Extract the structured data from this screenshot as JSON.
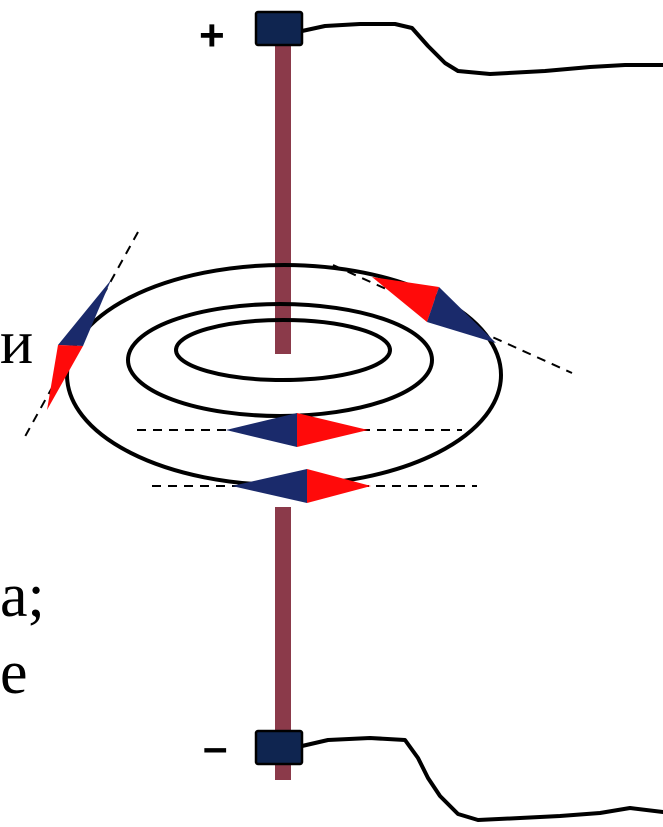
{
  "text_fragments": {
    "fragment_1": "и",
    "fragment_2": "а;",
    "fragment_3": "е"
  },
  "terminals": {
    "positive_sign": "+",
    "negative_sign": "–"
  },
  "colors": {
    "conductor": "#8b3a4a",
    "terminal": "#0f2550",
    "needle_north": "#1a2a6b",
    "needle_south": "#ff0a0a",
    "field_lines": "#000000",
    "wire": "#000000"
  },
  "icons": {
    "terminal_block": "square",
    "compass_needle": "rhombus"
  }
}
